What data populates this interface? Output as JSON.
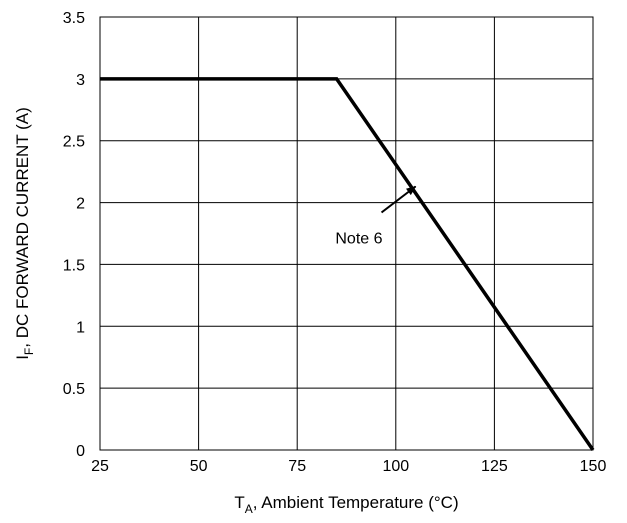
{
  "chart_data": {
    "type": "line",
    "xlabel": {
      "main": "T",
      "sub": "A",
      "rest": ", Ambient Temperature (°C)"
    },
    "ylabel": {
      "main": "I",
      "sub": "F",
      "rest": ", DC FORWARD CURRENT (A)"
    },
    "xlim": [
      25,
      150
    ],
    "ylim": [
      0,
      3.5
    ],
    "x_ticks": [
      25,
      50,
      75,
      100,
      125,
      150
    ],
    "y_ticks": [
      0,
      0.5,
      1,
      1.5,
      2,
      2.5,
      3,
      3.5
    ],
    "x_tick_labels": [
      "25",
      "50",
      "75",
      "100",
      "125",
      "150"
    ],
    "y_tick_labels": [
      "0",
      "0.5",
      "1",
      "1.5",
      "2",
      "2.5",
      "3",
      "3.5"
    ],
    "grid": true,
    "series": [
      {
        "x": [
          25,
          85,
          150
        ],
        "y": [
          3,
          3,
          0
        ]
      }
    ],
    "annotations": [
      {
        "text": "Note 6",
        "points_to": {
          "x": 105,
          "y": 2.13
        }
      }
    ],
    "colors": {
      "line": "#000000",
      "grid": "#000000",
      "background": "#ffffff"
    }
  }
}
